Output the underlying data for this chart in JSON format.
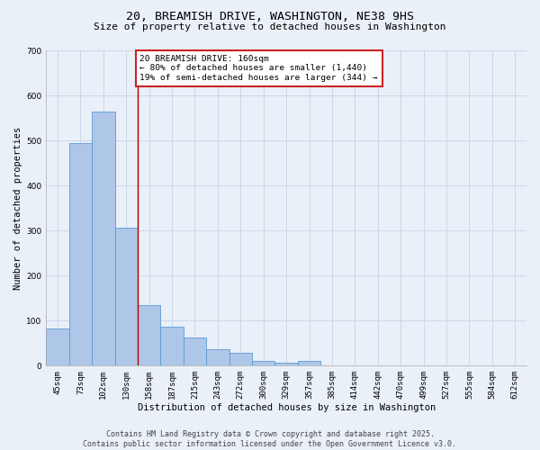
{
  "title_line1": "20, BREAMISH DRIVE, WASHINGTON, NE38 9HS",
  "title_line2": "Size of property relative to detached houses in Washington",
  "xlabel": "Distribution of detached houses by size in Washington",
  "ylabel": "Number of detached properties",
  "categories": [
    "45sqm",
    "73sqm",
    "102sqm",
    "130sqm",
    "158sqm",
    "187sqm",
    "215sqm",
    "243sqm",
    "272sqm",
    "300sqm",
    "329sqm",
    "357sqm",
    "385sqm",
    "414sqm",
    "442sqm",
    "470sqm",
    "499sqm",
    "527sqm",
    "555sqm",
    "584sqm",
    "612sqm"
  ],
  "values": [
    83,
    495,
    565,
    307,
    135,
    87,
    63,
    37,
    29,
    11,
    7,
    10,
    0,
    0,
    0,
    0,
    0,
    0,
    0,
    0,
    0
  ],
  "bar_color": "#aec6e8",
  "bar_edge_color": "#5b9bd5",
  "highlight_line_color": "#aa0000",
  "annotation_text": "20 BREAMISH DRIVE: 160sqm\n← 80% of detached houses are smaller (1,440)\n19% of semi-detached houses are larger (344) →",
  "annotation_box_facecolor": "#ffffff",
  "annotation_box_edgecolor": "#cc2222",
  "ylim": [
    0,
    700
  ],
  "yticks": [
    0,
    100,
    200,
    300,
    400,
    500,
    600,
    700
  ],
  "grid_color": "#c8d8ea",
  "background_color": "#eaf0f8",
  "footer_line1": "Contains HM Land Registry data © Crown copyright and database right 2025.",
  "footer_line2": "Contains public sector information licensed under the Open Government Licence v3.0.",
  "title_fontsize": 9.5,
  "subtitle_fontsize": 8,
  "axis_label_fontsize": 7.5,
  "tick_fontsize": 6.5,
  "annotation_fontsize": 6.8,
  "footer_fontsize": 6
}
